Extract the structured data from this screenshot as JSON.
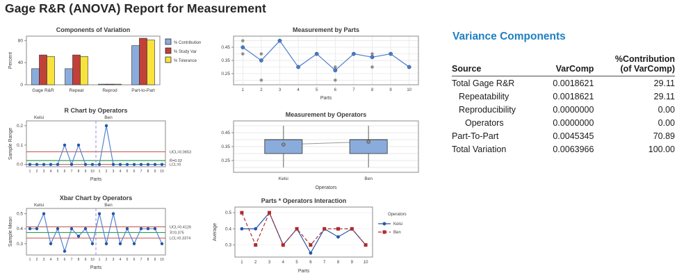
{
  "page_title": "Gage R&R (ANOVA) Report for Measurement",
  "colors": {
    "page_title_text": "#262626",
    "chart_text": "#3B3B3B",
    "accent_blue": "#1E7FC2",
    "bar_blue": "#8AACDC",
    "bar_red": "#C2403A",
    "bar_yellow": "#F8E33D",
    "bar_border": "#2B2B2B",
    "line_blue": "#5585CE",
    "marker_blue": "#2456A8",
    "kelsi_blue": "#2456A8",
    "ben_red": "#B02A2E",
    "gray_point": "#8F8F8F",
    "control_red": "#C0504D",
    "control_green": "#2E9E50",
    "separator_purple": "#9C8BDB",
    "box_fill": "#8AACDC",
    "box_border": "#4D4D4D",
    "mean_line_gray": "#9A9A9A",
    "plot_border": "#8A8A8A",
    "grid_gray": "#E3E3E3",
    "table_text": "#1A1A1A",
    "table_rule": "#4D4D4D"
  },
  "chart_data": [
    {
      "id": "components-of-variation",
      "type": "bar",
      "title": "Components of Variation",
      "ylabel": "Percent",
      "categories": [
        "Gage R&R",
        "Repeat",
        "Reprod",
        "Part-to-Part"
      ],
      "series": [
        {
          "name": "% Contribution",
          "color_key": "bar_blue",
          "values": [
            29.11,
            29.11,
            0,
            70.89
          ]
        },
        {
          "name": "% Study Var",
          "color_key": "bar_red",
          "values": [
            53.95,
            53.95,
            0,
            84.19
          ]
        },
        {
          "name": "% Tolerance",
          "color_key": "bar_yellow",
          "values": [
            51.0,
            51.0,
            0,
            80.9
          ]
        }
      ],
      "yticks": [
        0,
        40,
        80
      ],
      "ytick_labels": [
        "0",
        "40",
        "80"
      ],
      "ylim": [
        0,
        88
      ],
      "legend_position": "right",
      "grid": false
    },
    {
      "id": "measurement-by-parts",
      "type": "scatter-line",
      "title": "Measurement by Parts",
      "xlabel": "Parts",
      "x": [
        1,
        2,
        3,
        4,
        5,
        6,
        7,
        8,
        9,
        10
      ],
      "points": [
        [
          0.4,
          0.5
        ],
        [
          0.2,
          0.4
        ],
        [
          0.5,
          0.5
        ],
        [
          0.3,
          0.3
        ],
        [
          0.4,
          0.4
        ],
        [
          0.2,
          0.3
        ],
        [
          0.4,
          0.4
        ],
        [
          0.3,
          0.4
        ],
        [
          0.4,
          0.4
        ],
        [
          0.3,
          0.3
        ]
      ],
      "means": [
        0.45,
        0.35,
        0.5,
        0.3,
        0.4,
        0.275,
        0.4,
        0.375,
        0.4,
        0.3
      ],
      "yticks": [
        0.25,
        0.35,
        0.45
      ],
      "ytick_labels": [
        "0.25",
        "0.35",
        "0.45"
      ],
      "ygrid": [
        0.2,
        0.25,
        0.3,
        0.35,
        0.4,
        0.45,
        0.5
      ],
      "ylim": [
        0.165,
        0.535
      ],
      "grid": "both"
    },
    {
      "id": "r-chart",
      "type": "control",
      "title": "R Chart by Operators",
      "ylabel": "Sample Range",
      "xlabel": "Parts",
      "operators": [
        "Kelsi",
        "Ben"
      ],
      "x_per_operator": [
        1,
        2,
        3,
        4,
        5,
        6,
        7,
        8,
        9,
        10
      ],
      "series": [
        [
          0,
          0,
          0,
          0,
          0,
          0.1,
          0,
          0.1,
          0,
          0
        ],
        [
          0,
          0.2,
          0,
          0,
          0,
          0,
          0,
          0,
          0,
          0
        ]
      ],
      "ucl": 0.0653,
      "center": 0.02,
      "lcl": 0,
      "ucl_label": "UCL=0.0653",
      "center_label": "R̄=0.02",
      "lcl_label": "LCL=0",
      "yticks": [
        0.0,
        0.1,
        0.2
      ],
      "ytick_labels": [
        "0.0",
        "0.1",
        "0.2"
      ],
      "ylim": [
        -0.012,
        0.225
      ]
    },
    {
      "id": "measurement-by-operators",
      "type": "boxplot",
      "title": "Measurement by Operators",
      "xlabel": "Operators",
      "categories": [
        "Kelsi",
        "Ben"
      ],
      "boxes": [
        {
          "min": 0.2,
          "q1": 0.3,
          "median": 0.4,
          "q3": 0.4,
          "max": 0.5,
          "mean": 0.365
        },
        {
          "min": 0.2,
          "q1": 0.3,
          "median": 0.4,
          "q3": 0.4,
          "max": 0.5,
          "mean": 0.385
        }
      ],
      "yticks": [
        0.25,
        0.35,
        0.45
      ],
      "ytick_labels": [
        "0.25",
        "0.35",
        "0.45"
      ],
      "ygrid": [
        0.2,
        0.25,
        0.3,
        0.35,
        0.4,
        0.45,
        0.5
      ],
      "ylim": [
        0.165,
        0.535
      ]
    },
    {
      "id": "xbar-chart",
      "type": "control",
      "title": "Xbar Chart by Operators",
      "ylabel": "Sample Mean",
      "xlabel": "Parts",
      "operators": [
        "Kelsi",
        "Ben"
      ],
      "x_per_operator": [
        1,
        2,
        3,
        4,
        5,
        6,
        7,
        8,
        9,
        10
      ],
      "series": [
        [
          0.4,
          0.4,
          0.5,
          0.3,
          0.4,
          0.25,
          0.4,
          0.35,
          0.4,
          0.3
        ],
        [
          0.5,
          0.3,
          0.5,
          0.3,
          0.4,
          0.3,
          0.4,
          0.4,
          0.4,
          0.3
        ]
      ],
      "ucl": 0.4126,
      "center": 0.375,
      "lcl": 0.3374,
      "ucl_label": "UCL=0.4126",
      "center_label": "X̄=0.375",
      "lcl_label": "LCL=0.3374",
      "yticks": [
        0.3,
        0.4,
        0.5
      ],
      "ytick_labels": [
        "0.3",
        "0.4",
        "0.5"
      ],
      "ylim": [
        0.225,
        0.535
      ]
    },
    {
      "id": "parts-operators-interaction",
      "type": "interaction",
      "title": "Parts * Operators Interaction",
      "ylabel": "Average",
      "xlabel": "Parts",
      "x": [
        1,
        2,
        3,
        4,
        5,
        6,
        7,
        8,
        9,
        10
      ],
      "legend_title": "Operators",
      "series": [
        {
          "name": "Kelsi",
          "color_key": "kelsi_blue",
          "marker": "circle",
          "line": "solid",
          "values": [
            0.4,
            0.4,
            0.5,
            0.3,
            0.4,
            0.25,
            0.4,
            0.35,
            0.4,
            0.3
          ]
        },
        {
          "name": "Ben",
          "color_key": "ben_red",
          "marker": "square",
          "line": "dashed",
          "values": [
            0.5,
            0.3,
            0.5,
            0.3,
            0.4,
            0.3,
            0.4,
            0.4,
            0.4,
            0.3
          ]
        }
      ],
      "yticks": [
        0.3,
        0.4,
        0.5
      ],
      "ytick_labels": [
        "0.3",
        "0.4",
        "0.5"
      ],
      "ylim": [
        0.225,
        0.535
      ]
    }
  ],
  "variance_components": {
    "section_title": "Variance Components",
    "col_source": "Source",
    "col_varcomp": "VarComp",
    "col_contrib_line1": "%Contribution",
    "col_contrib_line2": "(of VarComp)",
    "rows": [
      {
        "source": "Total Gage R&R",
        "indent": 0,
        "varcomp": "0.0018621",
        "contribution": "29.11"
      },
      {
        "source": "Repeatability",
        "indent": 1,
        "varcomp": "0.0018621",
        "contribution": "29.11"
      },
      {
        "source": "Reproducibility",
        "indent": 1,
        "varcomp": "0.0000000",
        "contribution": "0.00"
      },
      {
        "source": "Operators",
        "indent": 2,
        "varcomp": "0.0000000",
        "contribution": "0.00"
      },
      {
        "source": "Part-To-Part",
        "indent": 0,
        "varcomp": "0.0045345",
        "contribution": "70.89"
      },
      {
        "source": "Total Variation",
        "indent": 0,
        "varcomp": "0.0063966",
        "contribution": "100.00"
      }
    ]
  }
}
